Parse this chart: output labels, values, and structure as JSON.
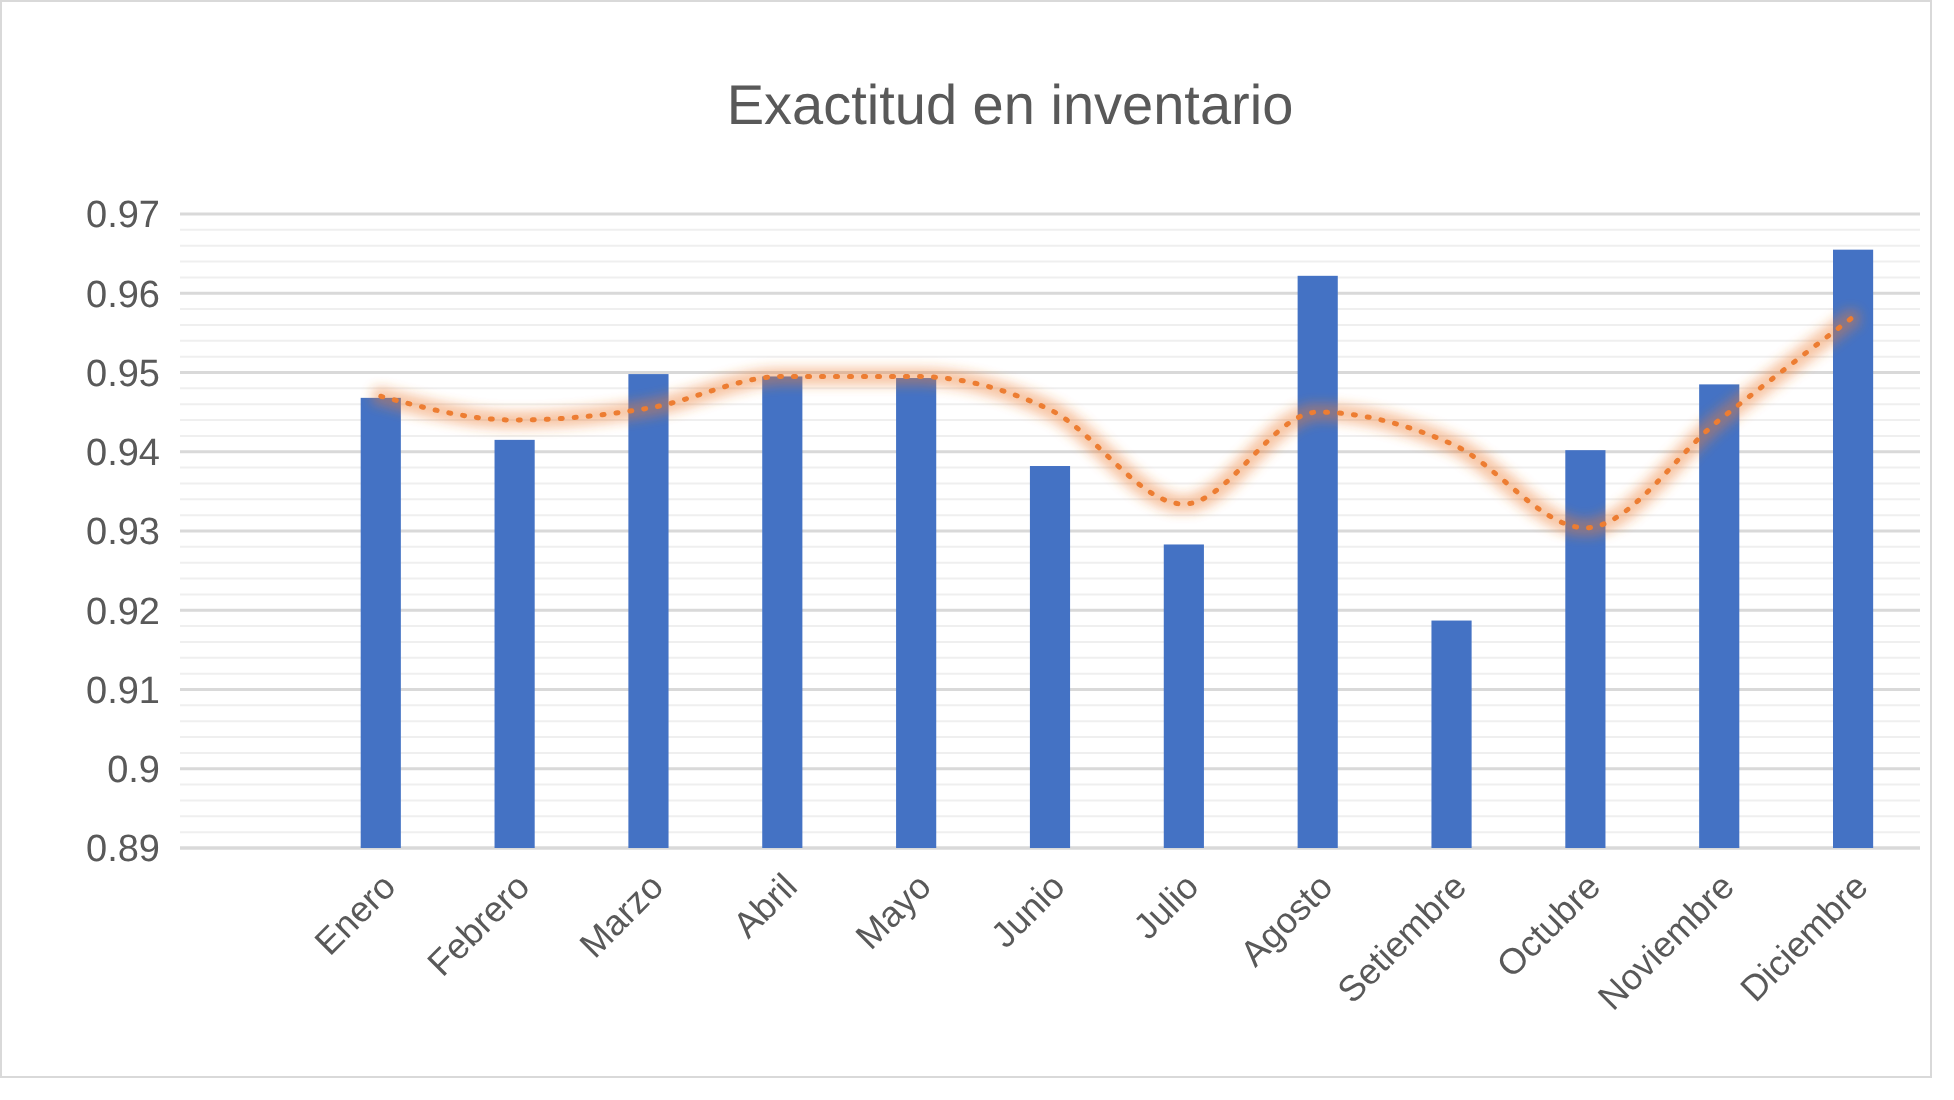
{
  "chart_data": {
    "type": "bar",
    "title": "Exactitud en inventario",
    "categories": [
      null,
      "Enero",
      "Febrero",
      "Marzo",
      "Abril",
      "Mayo",
      "Junio",
      "Julio",
      "Agosto",
      "Setiembre",
      "Octubre",
      "Noviembre",
      "Diciembre"
    ],
    "series": [
      {
        "color": "#4472c4",
        "values": [
          null,
          0.9468,
          0.9415,
          0.9498,
          0.9495,
          0.9493,
          0.9382,
          0.9283,
          0.9622,
          0.9187,
          0.9402,
          0.9485,
          0.9655
        ]
      },
      {
        "type": "line",
        "color": "#ed7d31",
        "line_style": "dotted",
        "marker": "none",
        "values": [
          null,
          0.947,
          0.944,
          0.9455,
          0.9495,
          0.9495,
          0.9453,
          0.9334,
          0.945,
          0.941,
          0.9304,
          0.944,
          0.957
        ]
      }
    ],
    "ylim": [
      0.89,
      0.97
    ],
    "yticks": [
      0.89,
      {
        "value": 0.892,
        "label": null
      },
      {
        "value": 0.894,
        "label": null
      },
      {
        "value": 0.896,
        "label": null
      },
      {
        "value": 0.898,
        "label": null
      },
      0.9,
      {
        "value": 0.902,
        "label": null
      },
      {
        "value": 0.904,
        "label": null
      },
      {
        "value": 0.906,
        "label": null
      },
      {
        "value": 0.908,
        "label": null
      },
      0.91,
      {
        "value": 0.912,
        "label": null
      },
      {
        "value": 0.914,
        "label": null
      },
      {
        "value": 0.916,
        "label": null
      },
      {
        "value": 0.918,
        "label": null
      },
      0.92,
      {
        "value": 0.922,
        "label": null
      },
      {
        "value": 0.924,
        "label": null
      },
      {
        "value": 0.926,
        "label": null
      },
      {
        "value": 0.928,
        "label": null
      },
      0.93,
      {
        "value": 0.932,
        "label": null
      },
      {
        "value": 0.934,
        "label": null
      },
      {
        "value": 0.936,
        "label": null
      },
      {
        "value": 0.938,
        "label": null
      },
      0.94,
      {
        "value": 0.942,
        "label": null
      },
      {
        "value": 0.944,
        "label": null
      },
      {
        "value": 0.946,
        "label": null
      },
      {
        "value": 0.948,
        "label": null
      },
      0.95,
      {
        "value": 0.952,
        "label": null
      },
      {
        "value": 0.954,
        "label": null
      },
      {
        "value": 0.956,
        "label": null
      },
      {
        "value": 0.958,
        "label": null
      },
      0.96,
      {
        "value": 0.962,
        "label": null
      },
      {
        "value": 0.964,
        "label": null
      },
      {
        "value": 0.966,
        "label": null
      },
      {
        "value": 0.968,
        "label": null
      },
      0.97
    ],
    "grid": "y"
  }
}
